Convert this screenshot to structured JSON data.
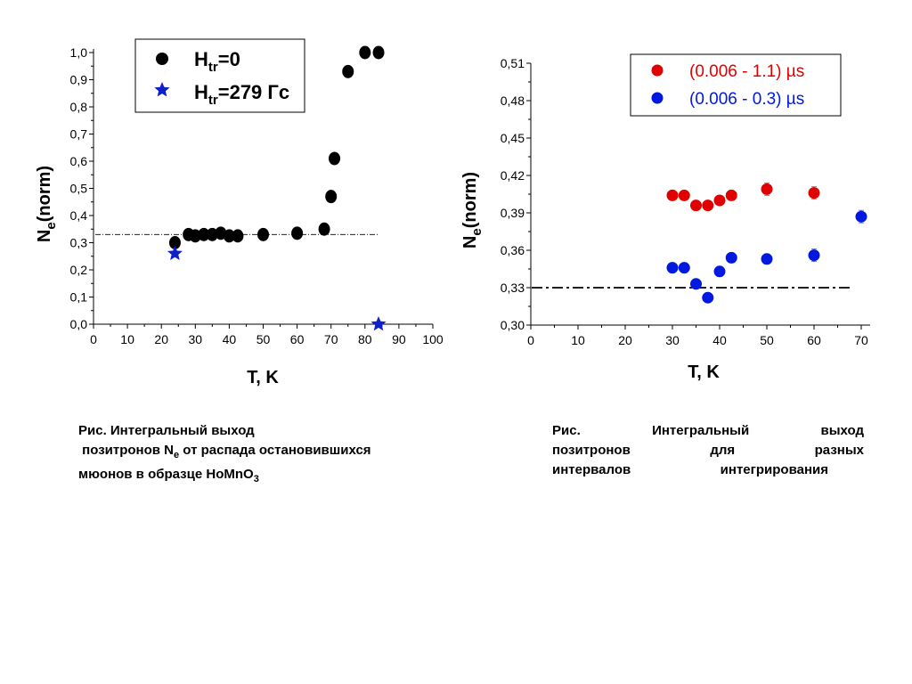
{
  "chart_data": [
    {
      "type": "scatter",
      "title": "",
      "xlabel": "T, K",
      "ylabel_main": "N",
      "ylabel_sub": "e",
      "ylabel_rest": "(norm)",
      "xlim": [
        0,
        100
      ],
      "ylim": [
        0.0,
        1.0
      ],
      "x_ticks": [
        "0",
        "10",
        "20",
        "30",
        "40",
        "50",
        "60",
        "70",
        "80",
        "90",
        "100"
      ],
      "y_ticks": [
        "0,0",
        "0,1",
        "0,2",
        "0,3",
        "0,4",
        "0,5",
        "0,6",
        "0,7",
        "0,8",
        "0,9",
        "1,0"
      ],
      "reference_line_y": 0.33,
      "legend_position": "top-center",
      "legend": [
        {
          "prefix": "H",
          "sub": "tr",
          "suffix": "=0"
        },
        {
          "prefix": "H",
          "sub": "tr",
          "suffix": "=279 Гс"
        }
      ],
      "series": [
        {
          "marker": "circle",
          "color": "#000000",
          "x": [
            24,
            28,
            30,
            32.5,
            35,
            37.5,
            40,
            42.5,
            50,
            60,
            68,
            70,
            71,
            75,
            80,
            84
          ],
          "y": [
            0.3,
            0.33,
            0.325,
            0.33,
            0.33,
            0.335,
            0.325,
            0.325,
            0.33,
            0.335,
            0.35,
            0.47,
            0.61,
            0.93,
            1.0,
            1.0
          ]
        },
        {
          "marker": "star",
          "color": "#1020c8",
          "x": [
            24,
            84
          ],
          "y": [
            0.26,
            0.0
          ]
        }
      ]
    },
    {
      "type": "scatter",
      "title": "",
      "xlabel": "T, K",
      "ylabel_main": "N",
      "ylabel_sub": "e",
      "ylabel_rest": "(norm)",
      "xlim": [
        0,
        70
      ],
      "ylim": [
        0.3,
        0.51
      ],
      "x_ticks": [
        "0",
        "10",
        "20",
        "30",
        "40",
        "50",
        "60",
        "70"
      ],
      "y_ticks": [
        "0,30",
        "0,33",
        "0,36",
        "0,39",
        "0,42",
        "0,45",
        "0,48",
        "0,51"
      ],
      "reference_line_y": 0.33,
      "legend_position": "top-right",
      "legend": [
        {
          "text": "(0.006 - 1.1) µs",
          "color": "#e00000"
        },
        {
          "text": "(0.006 - 0.3) µs",
          "color": "#0018e0"
        }
      ],
      "series": [
        {
          "marker": "circle",
          "color": "#e00000",
          "x": [
            30,
            32.5,
            35,
            37.5,
            40,
            42.5,
            50,
            60
          ],
          "y": [
            0.404,
            0.404,
            0.396,
            0.396,
            0.4,
            0.404,
            0.409,
            0.406
          ],
          "err": [
            0.004,
            0.003,
            0.004,
            0.003,
            0.003,
            0.004,
            0.005,
            0.005
          ]
        },
        {
          "marker": "circle",
          "color": "#0018e0",
          "x": [
            30,
            32.5,
            35,
            37.5,
            40,
            42.5,
            50,
            60,
            70
          ],
          "y": [
            0.346,
            0.346,
            0.333,
            0.322,
            0.343,
            0.354,
            0.353,
            0.356,
            0.387
          ],
          "err": [
            0.004,
            0.004,
            0.003,
            0.004,
            0.004,
            0.004,
            0.004,
            0.005,
            0.005
          ]
        }
      ]
    }
  ],
  "captions": {
    "left": {
      "line1": "Рис.  Интегральный выход",
      "line2_a": " позитронов N",
      "line2_sub": "e",
      "line2_b": " от распада остановившихся",
      "line3_a": "мюонов в образце HoMnO",
      "line3_sub": "3"
    },
    "right": {
      "row1": [
        "Рис.",
        "Интегральный",
        "выход"
      ],
      "row2": [
        "позитронов",
        "для",
        "разных"
      ],
      "row3": [
        "интервалов",
        "интегрирования"
      ]
    }
  }
}
